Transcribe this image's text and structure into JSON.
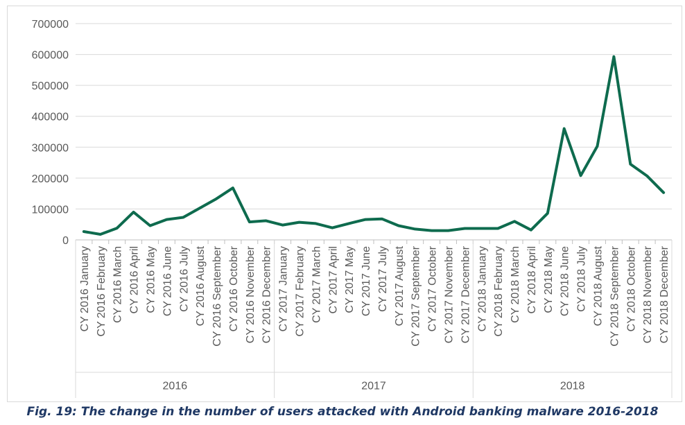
{
  "caption": "Fig. 19: The change in the number of users attacked with Android banking malware 2016-2018",
  "chart_data": {
    "type": "line",
    "title": "",
    "xlabel": "",
    "ylabel": "",
    "ylim": [
      0,
      700000
    ],
    "yticks": [
      0,
      100000,
      200000,
      300000,
      400000,
      500000,
      600000,
      700000
    ],
    "grid": true,
    "legend": "none",
    "line_color": "#0e6b4e",
    "groups": [
      {
        "label": "2016",
        "count": 12
      },
      {
        "label": "2017",
        "count": 12
      },
      {
        "label": "2018",
        "count": 12
      }
    ],
    "categories": [
      "CY 2016 January",
      "CY 2016 February",
      "CY 2016 March",
      "CY 2016 April",
      "CY 2016 May",
      "CY 2016 June",
      "CY 2016 July",
      "CY 2016 August",
      "CY 2016 September",
      "CY 2016 October",
      "CY 2016 November",
      "CY 2016 December",
      "CY 2017 January",
      "CY 2017 February",
      "CY 2017 March",
      "CY 2017 April",
      "CY 2017 May",
      "CY 2017 June",
      "CY 2017 July",
      "CY 2017 August",
      "CY 2017 September",
      "CY 2017 October",
      "CY 2017 November",
      "CY 2017 December",
      "CY 2018 January",
      "CY 2018 February",
      "CY 2018 March",
      "CY 2018 April",
      "CY 2018 May",
      "CY 2018 June",
      "CY 2018 July",
      "CY 2018 August",
      "CY 2018 September",
      "CY 2018 October",
      "CY 2018 November",
      "CY 2018 December"
    ],
    "values": [
      27000,
      18000,
      38000,
      90000,
      46000,
      66000,
      73000,
      103000,
      133000,
      168000,
      58000,
      62000,
      48000,
      57000,
      53000,
      39000,
      53000,
      66000,
      68000,
      46000,
      35000,
      30000,
      30000,
      37000,
      37000,
      37000,
      60000,
      32000,
      86000,
      360000,
      208000,
      303000,
      593000,
      245000,
      207000,
      153000
    ]
  }
}
